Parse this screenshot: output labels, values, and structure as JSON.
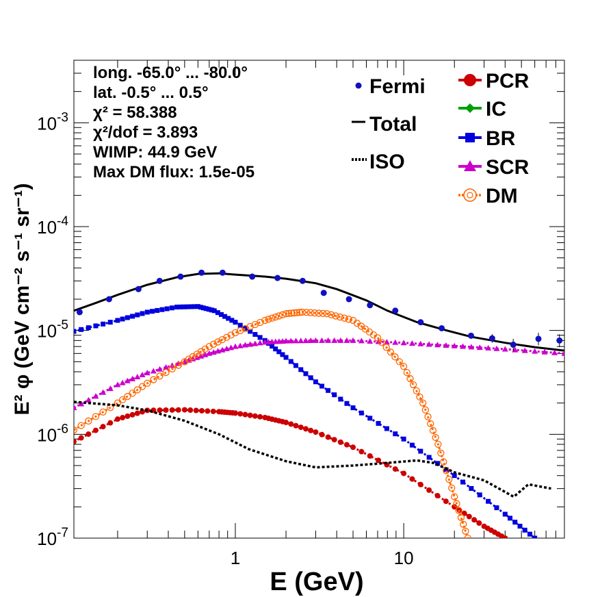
{
  "chart_data": {
    "type": "line",
    "xlabel": "E (GeV)",
    "ylabel": "E² φ (GeV cm⁻² s⁻¹ sr⁻¹)",
    "x_scale": "log",
    "y_scale": "log",
    "xlim": [
      0.11,
      90
    ],
    "ylim": [
      1e-07,
      0.004
    ],
    "x_tick_labels": [
      {
        "value": 1,
        "label": "1"
      },
      {
        "value": 10,
        "label": "10"
      }
    ],
    "y_tick_labels": [
      {
        "value": 1e-07,
        "label": "10",
        "exp": "-7"
      },
      {
        "value": 1e-06,
        "label": "10",
        "exp": "-6"
      },
      {
        "value": 1e-05,
        "label": "10",
        "exp": "-5"
      },
      {
        "value": 0.0001,
        "label": "10",
        "exp": "-4"
      },
      {
        "value": 0.001,
        "label": "10",
        "exp": "-3"
      }
    ],
    "info_lines": [
      "long. -65.0° ... -80.0°",
      "lat. -0.5° ... 0.5°",
      "χ² = 58.388",
      "χ²/dof = 3.893",
      "WIMP: 44.9 GeV",
      "Max DM flux: 1.5e-05"
    ],
    "legend_left": [
      {
        "label": "Fermi",
        "marker": "dot",
        "color": "#1010c0"
      },
      {
        "label": "Total",
        "marker": "line",
        "color": "#000000"
      },
      {
        "label": "ISO",
        "marker": "dotted",
        "color": "#000000"
      }
    ],
    "legend_right": [
      {
        "label": "PCR",
        "marker": "circle",
        "color": "#cc0000"
      },
      {
        "label": "IC",
        "marker": "diamond",
        "color": "#00a000"
      },
      {
        "label": "BR",
        "marker": "square",
        "color": "#0000dd"
      },
      {
        "label": "SCR",
        "marker": "triangle",
        "color": "#cc00cc"
      },
      {
        "label": "DM",
        "marker": "open-circle",
        "color": "#ff6600"
      }
    ],
    "fermi": {
      "name": "Fermi",
      "color": "#1010c0",
      "points": [
        [
          0.119,
          1.5e-05
        ],
        [
          0.178,
          2e-05
        ],
        [
          0.266,
          2.5e-05
        ],
        [
          0.355,
          3e-05
        ],
        [
          0.473,
          3.3e-05
        ],
        [
          0.63,
          3.6e-05
        ],
        [
          0.84,
          3.6e-05
        ],
        [
          1.26,
          3.3e-05
        ],
        [
          1.78,
          3.2e-05
        ],
        [
          2.51,
          3e-05
        ],
        [
          3.35,
          2.3e-05
        ],
        [
          4.73,
          2e-05
        ],
        [
          6.3,
          1.75e-05
        ],
        [
          8.91,
          1.55e-05
        ],
        [
          12.6,
          1.2e-05
        ],
        [
          16.8,
          1.05e-05
        ],
        [
          25.1,
          8.9e-06
        ],
        [
          33.5,
          8.4e-06
        ],
        [
          44.7,
          7.3e-06
        ],
        [
          63.1,
          8.3e-06
        ],
        [
          84.1,
          8e-06
        ]
      ],
      "errors": [
        [
          0.119,
          1.45e-05,
          1.55e-05
        ],
        [
          25.1,
          8.3e-06,
          9.5e-06
        ],
        [
          33.5,
          7.6e-06,
          9.2e-06
        ],
        [
          44.7,
          6.3e-06,
          8.3e-06
        ],
        [
          63.1,
          7.2e-06,
          9.5e-06
        ],
        [
          84.1,
          6.9e-06,
          9.2e-06
        ]
      ]
    },
    "series": [
      {
        "name": "Total",
        "color": "#000000",
        "style": "solid",
        "marker": "none",
        "points": [
          [
            0.11,
            1.55e-05
          ],
          [
            0.15,
            1.85e-05
          ],
          [
            0.2,
            2.2e-05
          ],
          [
            0.3,
            2.75e-05
          ],
          [
            0.45,
            3.25e-05
          ],
          [
            0.6,
            3.5e-05
          ],
          [
            0.8,
            3.55e-05
          ],
          [
            1.0,
            3.45e-05
          ],
          [
            1.5,
            3.3e-05
          ],
          [
            2.0,
            3.15e-05
          ],
          [
            3.0,
            2.85e-05
          ],
          [
            4.0,
            2.5e-05
          ],
          [
            6.0,
            1.95e-05
          ],
          [
            8.0,
            1.55e-05
          ],
          [
            12.0,
            1.2e-05
          ],
          [
            18.0,
            1e-05
          ],
          [
            25.0,
            8.7e-06
          ],
          [
            40.0,
            7.6e-06
          ],
          [
            60.0,
            6.9e-06
          ],
          [
            90.0,
            6.4e-06
          ]
        ]
      },
      {
        "name": "BR",
        "color": "#0000dd",
        "style": "markers",
        "marker": "square",
        "points": [
          [
            0.11,
            9.8e-06
          ],
          [
            0.2,
            1.25e-05
          ],
          [
            0.3,
            1.5e-05
          ],
          [
            0.45,
            1.68e-05
          ],
          [
            0.6,
            1.7e-05
          ],
          [
            0.75,
            1.55e-05
          ],
          [
            1.0,
            1.2e-05
          ],
          [
            1.5,
            8e-06
          ],
          [
            2.0,
            5.5e-06
          ],
          [
            3.0,
            3.2e-06
          ],
          [
            5.0,
            1.8e-06
          ],
          [
            10.0,
            9e-07
          ],
          [
            20.0,
            4e-07
          ],
          [
            40.0,
            1.7e-07
          ],
          [
            60.0,
            1e-07
          ]
        ]
      },
      {
        "name": "PCR",
        "color": "#cc0000",
        "style": "markers",
        "marker": "circle",
        "points": [
          [
            0.11,
            8.5e-07
          ],
          [
            0.2,
            1.4e-06
          ],
          [
            0.3,
            1.7e-06
          ],
          [
            0.5,
            1.72e-06
          ],
          [
            0.8,
            1.65e-06
          ],
          [
            1.0,
            1.6e-06
          ],
          [
            1.5,
            1.45e-06
          ],
          [
            2.0,
            1.3e-06
          ],
          [
            3.0,
            1.05e-06
          ],
          [
            5.0,
            7.5e-07
          ],
          [
            10.0,
            4.2e-07
          ],
          [
            20.0,
            2e-07
          ],
          [
            30.0,
            1.3e-07
          ],
          [
            40.0,
            1e-07
          ]
        ]
      },
      {
        "name": "SCR",
        "color": "#cc00cc",
        "style": "markers",
        "marker": "triangle",
        "points": [
          [
            0.11,
            1.8e-06
          ],
          [
            0.2,
            3e-06
          ],
          [
            0.3,
            3.9e-06
          ],
          [
            0.5,
            5e-06
          ],
          [
            0.7,
            6e-06
          ],
          [
            1.0,
            7e-06
          ],
          [
            1.5,
            7.7e-06
          ],
          [
            2.0,
            7.9e-06
          ],
          [
            3.0,
            8e-06
          ],
          [
            5.0,
            8e-06
          ],
          [
            10.0,
            7.6e-06
          ],
          [
            20.0,
            7.1e-06
          ],
          [
            40.0,
            6.6e-06
          ],
          [
            90.0,
            6e-06
          ]
        ]
      },
      {
        "name": "DM",
        "color": "#ff6600",
        "style": "markers",
        "marker": "open-circle",
        "points": [
          [
            0.11,
            1.1e-06
          ],
          [
            0.2,
            2e-06
          ],
          [
            0.3,
            3.1e-06
          ],
          [
            0.5,
            5e-06
          ],
          [
            0.7,
            7e-06
          ],
          [
            1.0,
            9.5e-06
          ],
          [
            1.5,
            1.25e-05
          ],
          [
            2.0,
            1.45e-05
          ],
          [
            2.5,
            1.5e-05
          ],
          [
            3.5,
            1.45e-05
          ],
          [
            5.0,
            1.25e-05
          ],
          [
            7.0,
            8.5e-06
          ],
          [
            10.0,
            4.5e-06
          ],
          [
            13.0,
            2e-06
          ],
          [
            16.0,
            8e-07
          ],
          [
            20.0,
            2.5e-07
          ],
          [
            24.0,
            1e-07
          ]
        ]
      },
      {
        "name": "ISO",
        "color": "#000000",
        "style": "dotted",
        "marker": "none",
        "points": [
          [
            0.11,
            2.05e-06
          ],
          [
            0.2,
            1.9e-06
          ],
          [
            0.3,
            1.7e-06
          ],
          [
            0.5,
            1.35e-06
          ],
          [
            0.8,
            1e-06
          ],
          [
            1.2,
            7.2e-07
          ],
          [
            2.0,
            5.5e-07
          ],
          [
            3.0,
            4.8e-07
          ],
          [
            5.0,
            5e-07
          ],
          [
            8.0,
            5.3e-07
          ],
          [
            12.0,
            5.6e-07
          ],
          [
            15.0,
            5.3e-07
          ],
          [
            20.0,
            4.3e-07
          ],
          [
            30.0,
            3.6e-07
          ],
          [
            45.0,
            2.5e-07
          ],
          [
            55.0,
            3.3e-07
          ],
          [
            75.0,
            3e-07
          ]
        ]
      }
    ]
  }
}
